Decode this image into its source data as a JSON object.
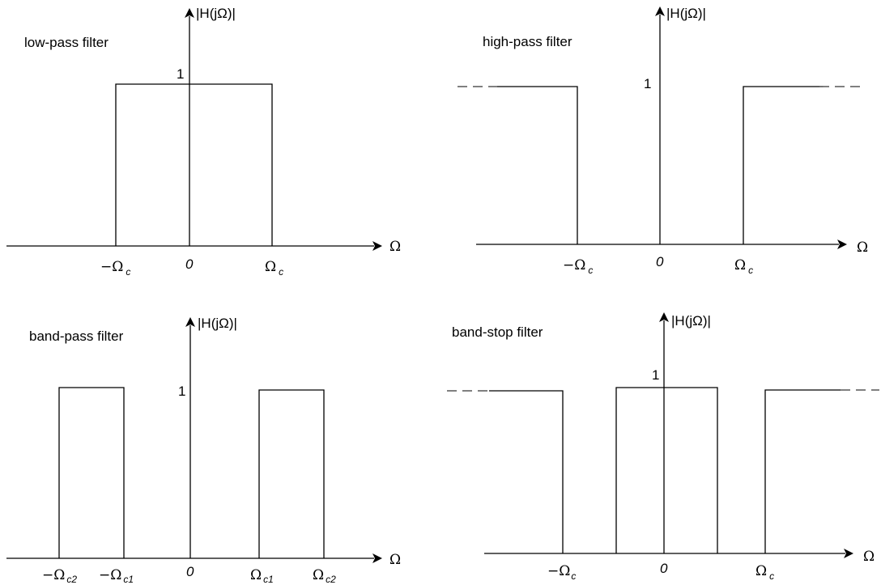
{
  "diagrams": {
    "lowpass": {
      "title": "low-pass filter",
      "y_label": "|H(jΩ)|",
      "x_label": "Ω",
      "level": "1",
      "ticks": [
        {
          "greek": "−Ω",
          "sub": "c"
        },
        {
          "text": "0"
        },
        {
          "greek": "Ω",
          "sub": "c"
        }
      ]
    },
    "highpass": {
      "title": "high-pass filter",
      "y_label": "|H(jΩ)|",
      "x_label": "Ω",
      "level": "1",
      "ticks": [
        {
          "greek": "−Ω",
          "sub": "c"
        },
        {
          "text": "0"
        },
        {
          "greek": "Ω",
          "sub": "c"
        }
      ]
    },
    "bandpass": {
      "title": "band-pass filter",
      "y_label": "|H(jΩ)|",
      "x_label": "Ω",
      "level": "1",
      "ticks": [
        {
          "greek": "−Ω",
          "sub": "c2"
        },
        {
          "greek": "−Ω",
          "sub": "c1"
        },
        {
          "text": "0"
        },
        {
          "greek": "Ω",
          "sub": "c1"
        },
        {
          "greek": "Ω",
          "sub": "c2"
        }
      ]
    },
    "bandstop": {
      "title": "band-stop filter",
      "y_label": "|H(jΩ)|",
      "x_label": "Ω",
      "level": "1",
      "ticks": [
        {
          "greek": "−Ω",
          "sub": "c"
        },
        {
          "text": "0"
        },
        {
          "greek": "Ω",
          "sub": "c"
        }
      ]
    }
  }
}
